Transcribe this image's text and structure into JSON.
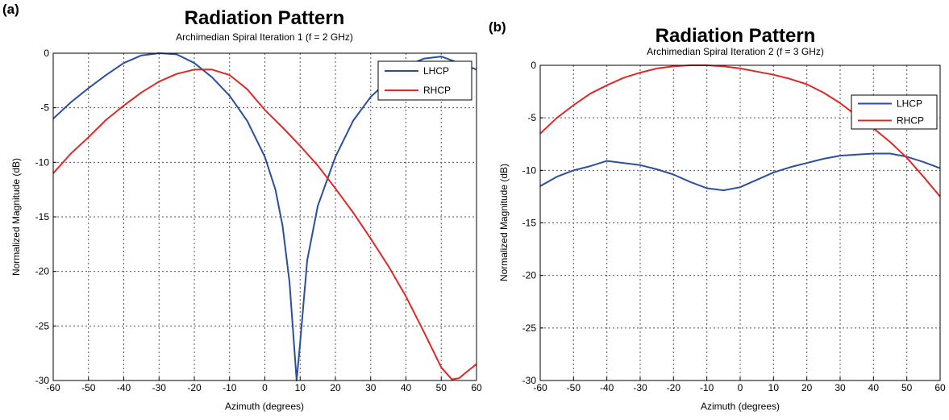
{
  "chart_data": [
    {
      "panel": "(a)",
      "type": "line",
      "title": "Radiation Pattern",
      "subtitle": "Archimedian Spiral Iteration 1 (f = 2 GHz)",
      "xlabel": "Azimuth (degrees)",
      "ylabel": "Normalized Magnitude (dB)",
      "xlim": [
        -60,
        60
      ],
      "ylim": [
        -30,
        0
      ],
      "xticks": [
        -60,
        -50,
        -40,
        -30,
        -20,
        -10,
        0,
        10,
        20,
        30,
        40,
        50,
        60
      ],
      "yticks": [
        0,
        -5,
        -10,
        -15,
        -20,
        -25,
        -30
      ],
      "grid": true,
      "legend_position": "top-right",
      "series": [
        {
          "name": "LHCP",
          "color": "#2b4f9e",
          "x": [
            -60,
            -55,
            -50,
            -45,
            -40,
            -35,
            -30,
            -25,
            -20,
            -15,
            -10,
            -5,
            0,
            3,
            5,
            7,
            9,
            10,
            12,
            15,
            18,
            20,
            25,
            30,
            35,
            40,
            45,
            50,
            55,
            60
          ],
          "y": [
            -6,
            -4.5,
            -3.2,
            -2,
            -0.9,
            -0.2,
            0,
            -0.1,
            -0.9,
            -2.2,
            -3.9,
            -6.2,
            -9.5,
            -12.5,
            -15.8,
            -21,
            -30,
            -26.5,
            -19,
            -14,
            -11.3,
            -9.5,
            -6.2,
            -4,
            -2.5,
            -1.2,
            -0.5,
            -0.3,
            -0.9,
            -1.5
          ]
        },
        {
          "name": "RHCP",
          "color": "#e02828",
          "x": [
            -60,
            -55,
            -50,
            -45,
            -40,
            -35,
            -30,
            -25,
            -20,
            -15,
            -10,
            -5,
            0,
            5,
            10,
            15,
            20,
            25,
            30,
            35,
            40,
            45,
            50,
            53,
            55,
            58,
            60
          ],
          "y": [
            -11,
            -9.2,
            -7.7,
            -6.1,
            -4.8,
            -3.6,
            -2.6,
            -1.9,
            -1.5,
            -1.5,
            -2,
            -3.3,
            -5.2,
            -6.8,
            -8.5,
            -10.3,
            -12.4,
            -14.6,
            -17,
            -19.5,
            -22.3,
            -25.5,
            -28.8,
            -29.9,
            -29.8,
            -29,
            -28.5
          ]
        }
      ]
    },
    {
      "panel": "(b)",
      "type": "line",
      "title": "Radiation Pattern",
      "subtitle": "Archimedian Spiral Iteration 2 (f = 3 GHz)",
      "xlabel": "Azimuth (degrees)",
      "ylabel": "Normalized Magnitude (dB)",
      "xlim": [
        -60,
        60
      ],
      "ylim": [
        -30,
        0
      ],
      "xticks": [
        -60,
        -50,
        -40,
        -30,
        -20,
        -10,
        0,
        10,
        20,
        30,
        40,
        50,
        60
      ],
      "yticks": [
        0,
        -5,
        -10,
        -15,
        -20,
        -25,
        -30
      ],
      "grid": true,
      "legend_position": "top-right",
      "series": [
        {
          "name": "LHCP",
          "color": "#2b4f9e",
          "x": [
            -60,
            -55,
            -50,
            -45,
            -40,
            -35,
            -30,
            -25,
            -20,
            -15,
            -10,
            -5,
            0,
            5,
            10,
            15,
            20,
            25,
            30,
            35,
            40,
            45,
            50,
            55,
            60
          ],
          "y": [
            -11.5,
            -10.6,
            -10,
            -9.6,
            -9.1,
            -9.3,
            -9.5,
            -9.9,
            -10.4,
            -11.1,
            -11.7,
            -11.9,
            -11.6,
            -10.9,
            -10.2,
            -9.7,
            -9.3,
            -8.9,
            -8.6,
            -8.5,
            -8.4,
            -8.4,
            -8.7,
            -9.2,
            -9.8
          ]
        },
        {
          "name": "RHCP",
          "color": "#e02828",
          "x": [
            -60,
            -55,
            -50,
            -45,
            -40,
            -35,
            -30,
            -25,
            -20,
            -15,
            -10,
            -5,
            0,
            5,
            10,
            15,
            20,
            25,
            30,
            35,
            40,
            45,
            50,
            55,
            60
          ],
          "y": [
            -6.5,
            -5,
            -3.8,
            -2.7,
            -1.9,
            -1.2,
            -0.7,
            -0.3,
            -0.1,
            0,
            0,
            -0.1,
            -0.3,
            -0.6,
            -0.9,
            -1.3,
            -1.8,
            -2.6,
            -3.6,
            -4.8,
            -6,
            -7.3,
            -8.8,
            -10.6,
            -12.5
          ]
        }
      ]
    }
  ]
}
